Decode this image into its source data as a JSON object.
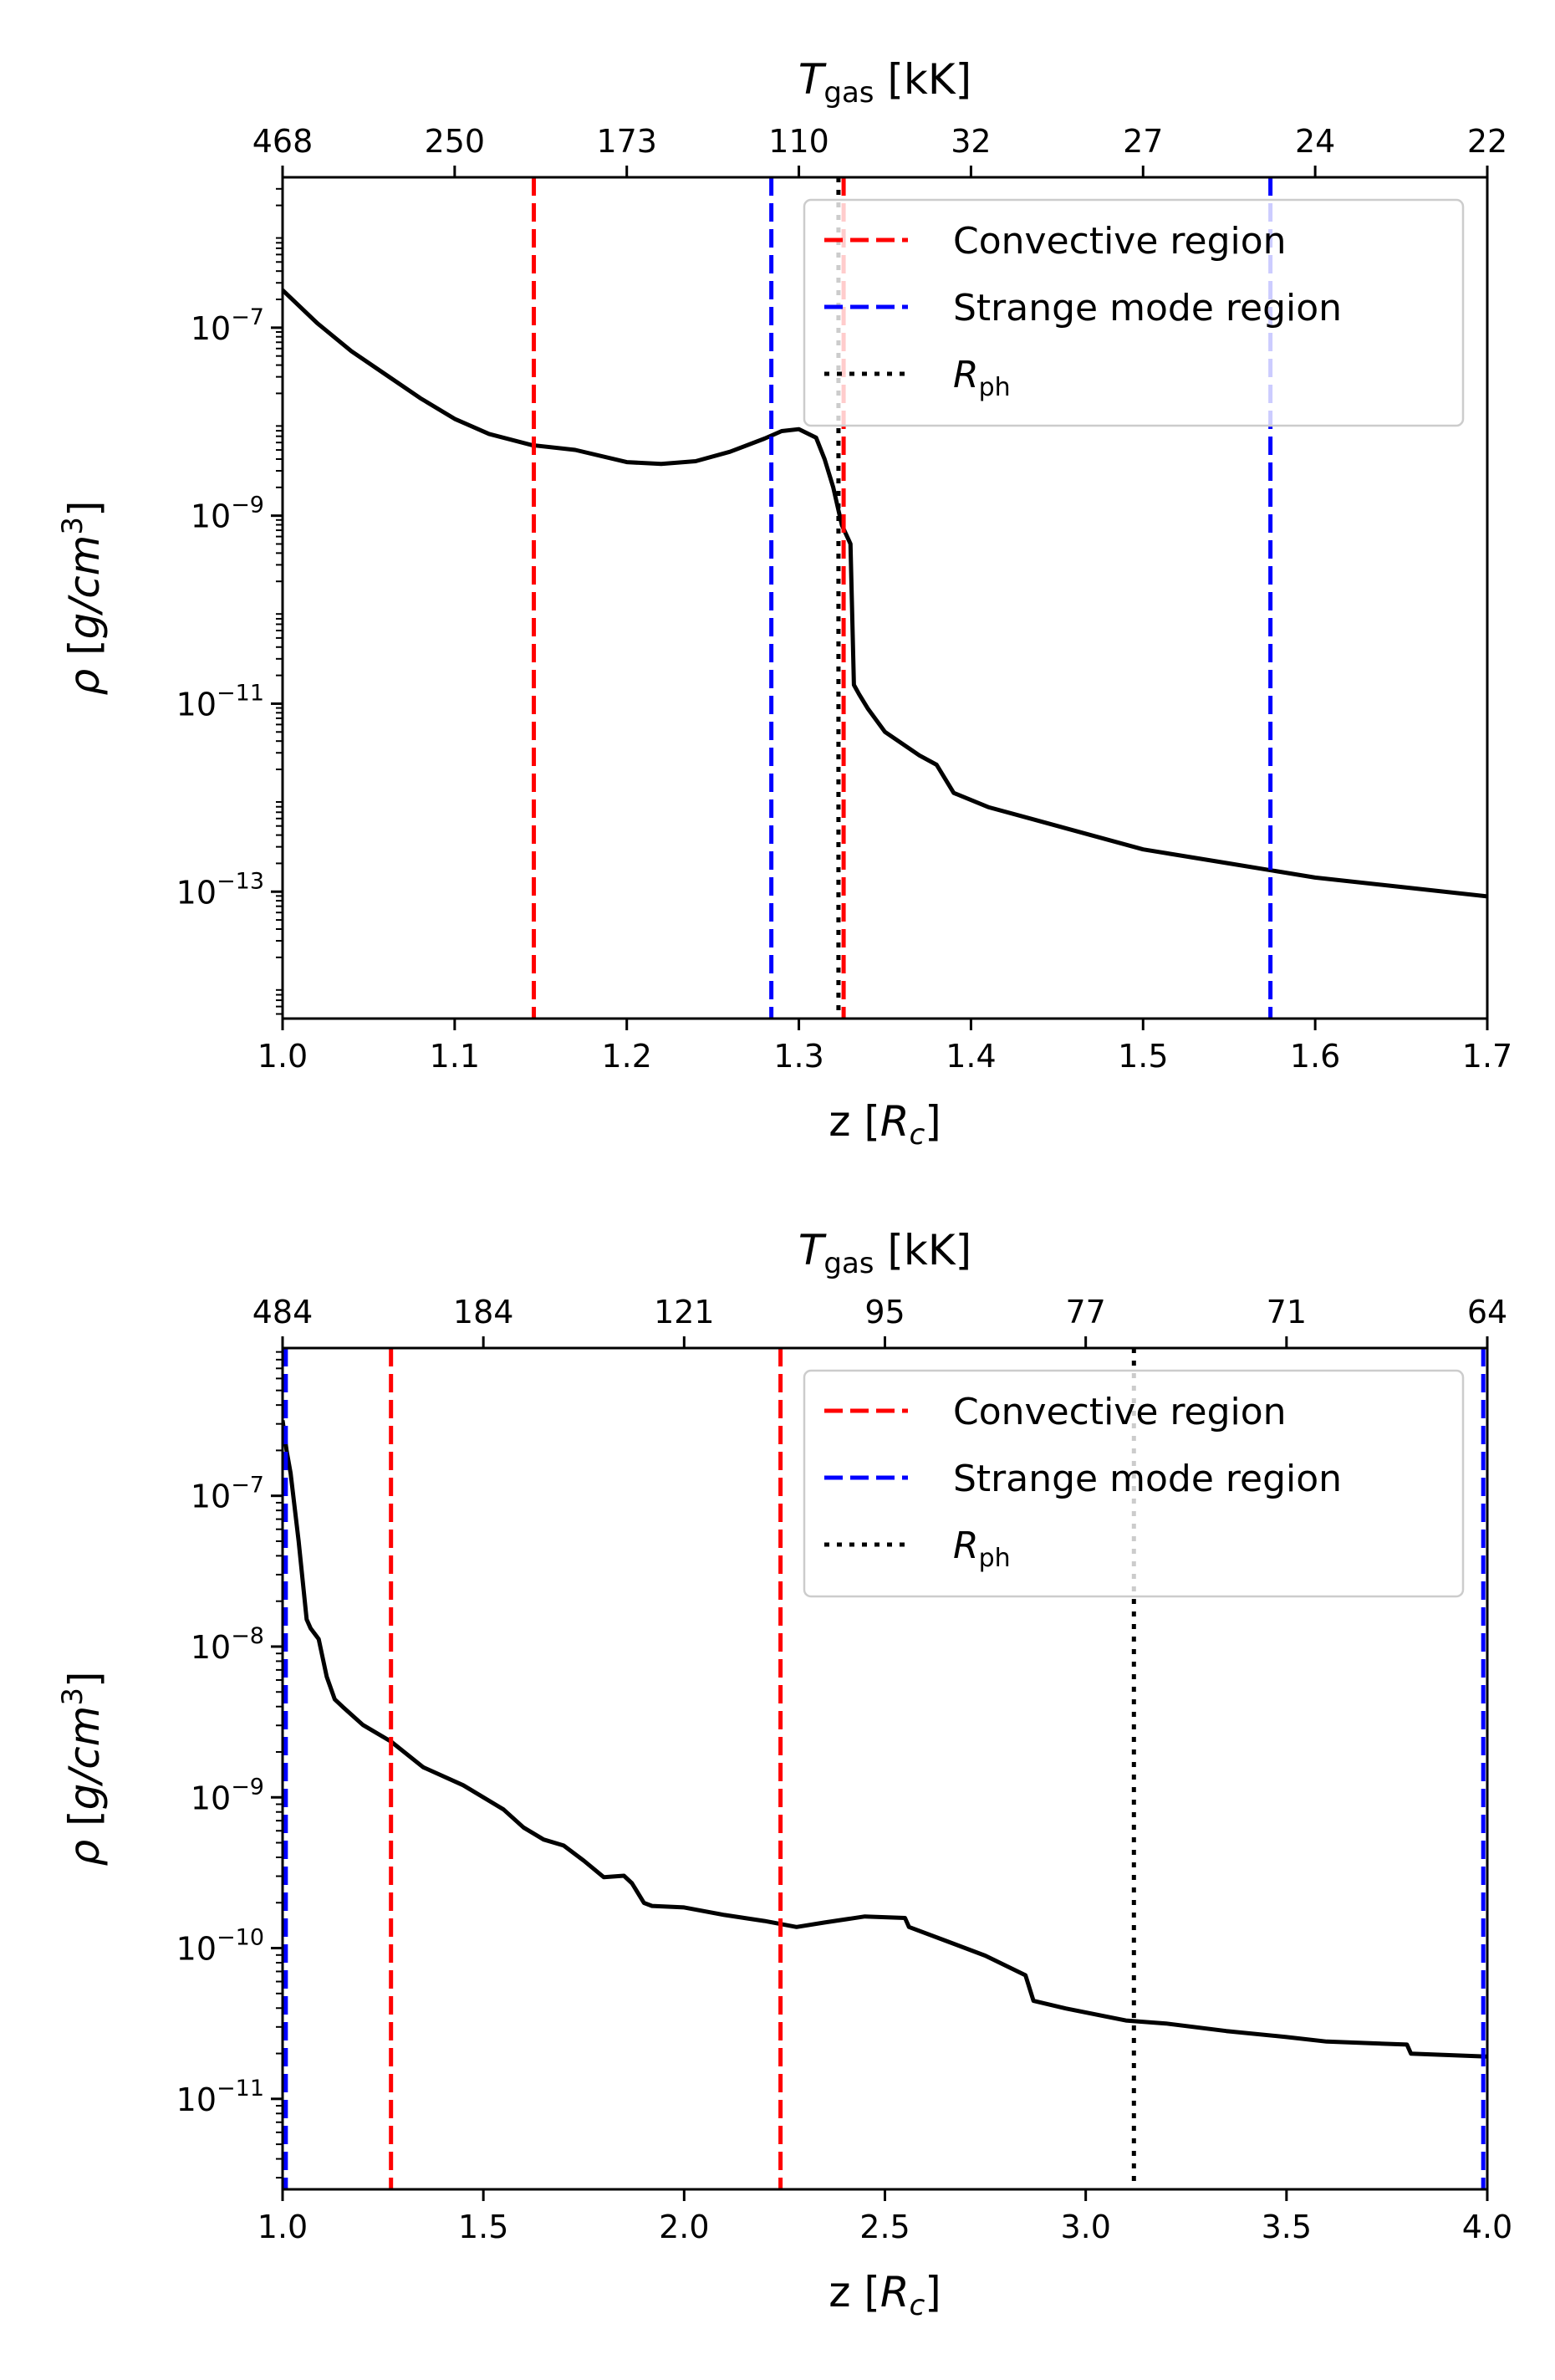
{
  "chart_data": [
    {
      "type": "line",
      "panel": "top",
      "xlabel": "z [R_c]",
      "ylabel": "ρ [g/cm^3]",
      "top_axis_label": "T_gas [kK]",
      "xlim": [
        1.0,
        1.7
      ],
      "ylim_log10": [
        -14.35,
        -5.4
      ],
      "yscale": "log",
      "x_ticks": [
        {
          "value": 1.0,
          "label": "1.0"
        },
        {
          "value": 1.1,
          "label": "1.1"
        },
        {
          "value": 1.2,
          "label": "1.2"
        },
        {
          "value": 1.3,
          "label": "1.3"
        },
        {
          "value": 1.4,
          "label": "1.4"
        },
        {
          "value": 1.5,
          "label": "1.5"
        },
        {
          "value": 1.6,
          "label": "1.6"
        },
        {
          "value": 1.7,
          "label": "1.7"
        }
      ],
      "y_ticks": [
        {
          "exp": -7,
          "base": "10",
          "sup": "−7"
        },
        {
          "exp": -9,
          "base": "10",
          "sup": "−9"
        },
        {
          "exp": -11,
          "base": "10",
          "sup": "−11"
        },
        {
          "exp": -13,
          "base": "10",
          "sup": "−13"
        }
      ],
      "top_ticks": [
        {
          "value": 1.0,
          "label": "468"
        },
        {
          "value": 1.1,
          "label": "250"
        },
        {
          "value": 1.2,
          "label": "173"
        },
        {
          "value": 1.3,
          "label": "110"
        },
        {
          "value": 1.4,
          "label": "32"
        },
        {
          "value": 1.5,
          "label": "27"
        },
        {
          "value": 1.6,
          "label": "24"
        },
        {
          "value": 1.7,
          "label": "22"
        }
      ],
      "series": [
        {
          "name": "density",
          "color": "#000000",
          "style": "solid",
          "x": [
            1.0,
            1.02,
            1.04,
            1.06,
            1.08,
            1.1,
            1.12,
            1.145,
            1.17,
            1.2,
            1.22,
            1.24,
            1.26,
            1.28,
            1.29,
            1.3,
            1.31,
            1.315,
            1.32,
            1.325,
            1.33,
            1.332,
            1.335,
            1.34,
            1.35,
            1.37,
            1.38,
            1.385,
            1.39,
            1.41,
            1.43,
            1.46,
            1.5,
            1.55,
            1.6,
            1.65,
            1.7
          ],
          "y_log10": [
            -6.6,
            -6.95,
            -7.25,
            -7.5,
            -7.75,
            -7.97,
            -8.13,
            -8.25,
            -8.3,
            -8.43,
            -8.45,
            -8.42,
            -8.32,
            -8.18,
            -8.1,
            -8.08,
            -8.17,
            -8.4,
            -8.7,
            -9.1,
            -9.3,
            -10.8,
            -10.9,
            -11.05,
            -11.3,
            -11.55,
            -11.65,
            -11.8,
            -11.95,
            -12.1,
            -12.2,
            -12.35,
            -12.55,
            -12.7,
            -12.85,
            -12.95,
            -13.05
          ]
        }
      ],
      "vlines": [
        {
          "x": 1.146,
          "color": "#ff0000",
          "style": "dashed"
        },
        {
          "x": 1.284,
          "color": "#0000ff",
          "style": "dashed"
        },
        {
          "x": 1.323,
          "color": "#000000",
          "style": "dotted"
        },
        {
          "x": 1.326,
          "color": "#ff0000",
          "style": "dashed"
        },
        {
          "x": 1.574,
          "color": "#0000ff",
          "style": "dashed"
        }
      ],
      "legend": {
        "placement": "top-right",
        "entries": [
          {
            "label": "Convective region",
            "color": "#ff0000",
            "style": "dashed"
          },
          {
            "label": "Strange mode region",
            "color": "#0000ff",
            "style": "dashed"
          },
          {
            "label": "R_ph",
            "color": "#000000",
            "style": "dotted"
          }
        ]
      }
    },
    {
      "type": "line",
      "panel": "bottom",
      "xlabel": "z [R_c]",
      "ylabel": "ρ [g/cm^3]",
      "top_axis_label": "T_gas [kK]",
      "xlim": [
        1.0,
        4.0
      ],
      "ylim_log10": [
        -11.6,
        -6.02
      ],
      "yscale": "log",
      "x_ticks": [
        {
          "value": 1.0,
          "label": "1.0"
        },
        {
          "value": 1.5,
          "label": "1.5"
        },
        {
          "value": 2.0,
          "label": "2.0"
        },
        {
          "value": 2.5,
          "label": "2.5"
        },
        {
          "value": 3.0,
          "label": "3.0"
        },
        {
          "value": 3.5,
          "label": "3.5"
        },
        {
          "value": 4.0,
          "label": "4.0"
        }
      ],
      "y_ticks": [
        {
          "exp": -7,
          "base": "10",
          "sup": "−7"
        },
        {
          "exp": -8,
          "base": "10",
          "sup": "−8"
        },
        {
          "exp": -9,
          "base": "10",
          "sup": "−9"
        },
        {
          "exp": -10,
          "base": "10",
          "sup": "−10"
        },
        {
          "exp": -11,
          "base": "10",
          "sup": "−11"
        }
      ],
      "top_ticks": [
        {
          "value": 1.0,
          "label": "484"
        },
        {
          "value": 1.5,
          "label": "184"
        },
        {
          "value": 2.0,
          "label": "121"
        },
        {
          "value": 2.5,
          "label": "95"
        },
        {
          "value": 3.0,
          "label": "77"
        },
        {
          "value": 3.5,
          "label": "71"
        },
        {
          "value": 4.0,
          "label": "64"
        }
      ],
      "series": [
        {
          "name": "density",
          "color": "#000000",
          "style": "solid",
          "x": [
            1.0,
            1.01,
            1.02,
            1.04,
            1.06,
            1.07,
            1.09,
            1.11,
            1.13,
            1.15,
            1.2,
            1.27,
            1.35,
            1.45,
            1.55,
            1.6,
            1.65,
            1.7,
            1.75,
            1.8,
            1.85,
            1.87,
            1.9,
            1.92,
            2.0,
            2.1,
            2.2,
            2.24,
            2.28,
            2.35,
            2.45,
            2.55,
            2.56,
            2.65,
            2.75,
            2.85,
            2.87,
            2.95,
            3.1,
            3.2,
            3.35,
            3.5,
            3.6,
            3.8,
            3.81,
            4.0
          ],
          "y_log10": [
            -6.5,
            -6.7,
            -6.85,
            -7.3,
            -7.82,
            -7.88,
            -7.95,
            -8.2,
            -8.35,
            -8.4,
            -8.52,
            -8.63,
            -8.8,
            -8.92,
            -9.08,
            -9.2,
            -9.28,
            -9.32,
            -9.42,
            -9.53,
            -9.52,
            -9.57,
            -9.7,
            -9.72,
            -9.73,
            -9.78,
            -9.82,
            -9.84,
            -9.86,
            -9.83,
            -9.79,
            -9.8,
            -9.86,
            -9.95,
            -10.05,
            -10.18,
            -10.35,
            -10.4,
            -10.48,
            -10.5,
            -10.55,
            -10.59,
            -10.62,
            -10.64,
            -10.7,
            -10.72
          ]
        }
      ],
      "vlines": [
        {
          "x": 1.008,
          "color": "#0000ff",
          "style": "dashed"
        },
        {
          "x": 1.27,
          "color": "#ff0000",
          "style": "dashed"
        },
        {
          "x": 2.24,
          "color": "#ff0000",
          "style": "dashed"
        },
        {
          "x": 3.12,
          "color": "#000000",
          "style": "dotted"
        },
        {
          "x": 3.99,
          "color": "#0000ff",
          "style": "dashed"
        }
      ],
      "legend": {
        "placement": "top-right",
        "entries": [
          {
            "label": "Convective region",
            "color": "#ff0000",
            "style": "dashed"
          },
          {
            "label": "Strange mode region",
            "color": "#0000ff",
            "style": "dashed"
          },
          {
            "label": "R_ph",
            "color": "#000000",
            "style": "dotted"
          }
        ]
      }
    }
  ]
}
